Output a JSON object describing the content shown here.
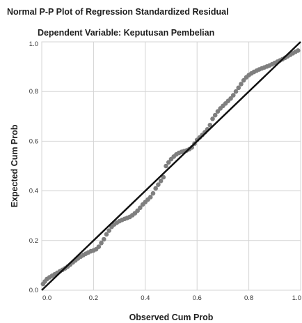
{
  "chart_data": {
    "type": "scatter",
    "title": "Normal P-P Plot of Regression Standardized Residual",
    "subtitle": "Dependent Variable: Keputusan Pembelian",
    "xlabel": "Observed Cum Prob",
    "ylabel": "Expected Cum Prob",
    "xlim": [
      0,
      1
    ],
    "ylim": [
      0,
      1
    ],
    "x_ticks": [
      0.0,
      0.2,
      0.4,
      0.6,
      0.8,
      1.0
    ],
    "y_ticks": [
      0.0,
      0.2,
      0.4,
      0.6,
      0.8,
      1.0
    ],
    "x_tick_labels": [
      "0.0",
      "0.2",
      "0.4",
      "0.6",
      "0.8",
      "1.0"
    ],
    "y_tick_labels": [
      "0.0",
      "0.2",
      "0.4",
      "0.6",
      "0.8",
      "1.0"
    ],
    "grid": true,
    "reference_line": {
      "from": [
        0,
        0
      ],
      "to": [
        1,
        1
      ],
      "color": "#111111"
    },
    "point_color": "#7f7f7f",
    "points": [
      [
        0.005,
        0.025
      ],
      [
        0.012,
        0.035
      ],
      [
        0.02,
        0.045
      ],
      [
        0.03,
        0.052
      ],
      [
        0.04,
        0.058
      ],
      [
        0.05,
        0.064
      ],
      [
        0.06,
        0.07
      ],
      [
        0.07,
        0.076
      ],
      [
        0.08,
        0.082
      ],
      [
        0.09,
        0.088
      ],
      [
        0.1,
        0.095
      ],
      [
        0.11,
        0.103
      ],
      [
        0.12,
        0.112
      ],
      [
        0.13,
        0.12
      ],
      [
        0.14,
        0.128
      ],
      [
        0.15,
        0.135
      ],
      [
        0.16,
        0.141
      ],
      [
        0.17,
        0.147
      ],
      [
        0.18,
        0.152
      ],
      [
        0.19,
        0.157
      ],
      [
        0.2,
        0.16
      ],
      [
        0.21,
        0.165
      ],
      [
        0.22,
        0.175
      ],
      [
        0.23,
        0.19
      ],
      [
        0.24,
        0.205
      ],
      [
        0.25,
        0.225
      ],
      [
        0.26,
        0.24
      ],
      [
        0.27,
        0.255
      ],
      [
        0.28,
        0.265
      ],
      [
        0.29,
        0.272
      ],
      [
        0.3,
        0.278
      ],
      [
        0.31,
        0.283
      ],
      [
        0.32,
        0.287
      ],
      [
        0.33,
        0.291
      ],
      [
        0.34,
        0.295
      ],
      [
        0.35,
        0.302
      ],
      [
        0.36,
        0.31
      ],
      [
        0.37,
        0.32
      ],
      [
        0.38,
        0.332
      ],
      [
        0.39,
        0.345
      ],
      [
        0.4,
        0.355
      ],
      [
        0.41,
        0.365
      ],
      [
        0.42,
        0.375
      ],
      [
        0.43,
        0.39
      ],
      [
        0.44,
        0.41
      ],
      [
        0.45,
        0.425
      ],
      [
        0.46,
        0.44
      ],
      [
        0.47,
        0.455
      ],
      [
        0.48,
        0.5
      ],
      [
        0.49,
        0.515
      ],
      [
        0.5,
        0.528
      ],
      [
        0.51,
        0.538
      ],
      [
        0.52,
        0.547
      ],
      [
        0.53,
        0.553
      ],
      [
        0.54,
        0.557
      ],
      [
        0.55,
        0.56
      ],
      [
        0.56,
        0.563
      ],
      [
        0.57,
        0.568
      ],
      [
        0.58,
        0.575
      ],
      [
        0.59,
        0.59
      ],
      [
        0.6,
        0.605
      ],
      [
        0.61,
        0.615
      ],
      [
        0.62,
        0.625
      ],
      [
        0.63,
        0.636
      ],
      [
        0.64,
        0.648
      ],
      [
        0.65,
        0.665
      ],
      [
        0.66,
        0.69
      ],
      [
        0.67,
        0.705
      ],
      [
        0.68,
        0.72
      ],
      [
        0.69,
        0.732
      ],
      [
        0.7,
        0.742
      ],
      [
        0.71,
        0.752
      ],
      [
        0.72,
        0.762
      ],
      [
        0.73,
        0.772
      ],
      [
        0.74,
        0.785
      ],
      [
        0.75,
        0.8
      ],
      [
        0.76,
        0.815
      ],
      [
        0.77,
        0.83
      ],
      [
        0.78,
        0.845
      ],
      [
        0.79,
        0.857
      ],
      [
        0.8,
        0.866
      ],
      [
        0.81,
        0.873
      ],
      [
        0.82,
        0.879
      ],
      [
        0.83,
        0.884
      ],
      [
        0.84,
        0.889
      ],
      [
        0.85,
        0.893
      ],
      [
        0.86,
        0.897
      ],
      [
        0.87,
        0.901
      ],
      [
        0.88,
        0.905
      ],
      [
        0.89,
        0.91
      ],
      [
        0.9,
        0.915
      ],
      [
        0.91,
        0.92
      ],
      [
        0.92,
        0.925
      ],
      [
        0.93,
        0.93
      ],
      [
        0.94,
        0.936
      ],
      [
        0.95,
        0.942
      ],
      [
        0.96,
        0.948
      ],
      [
        0.97,
        0.954
      ],
      [
        0.98,
        0.96
      ],
      [
        0.99,
        0.965
      ]
    ]
  }
}
